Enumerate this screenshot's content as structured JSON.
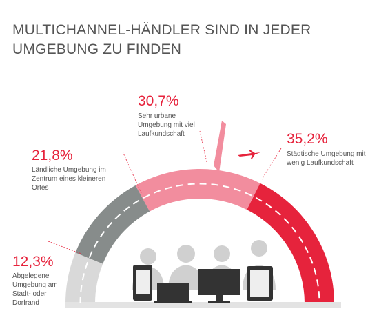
{
  "chart_data": {
    "type": "half-donut",
    "title": "MULTICHANNEL-HÄNDLER SIND IN JEDER UMGEBUNG ZU FINDEN",
    "categories": [
      "Abgelegene Umgebung am Stadt- oder Dorfrand",
      "Ländliche Umgebung im Zentrum eines kleineren Ortes",
      "Sehr urbane Umgebung mit viel Laufkundschaft",
      "Städtische Umgebung mit wenig Laufkundschaft"
    ],
    "values": [
      12.3,
      21.8,
      30.7,
      35.2
    ],
    "value_labels": [
      "12,3%",
      "21,8%",
      "30,7%",
      "35,2%"
    ],
    "colors": [
      "#d9d9d9",
      "#878c8b",
      "#f28d9e",
      "#e6233c"
    ]
  }
}
